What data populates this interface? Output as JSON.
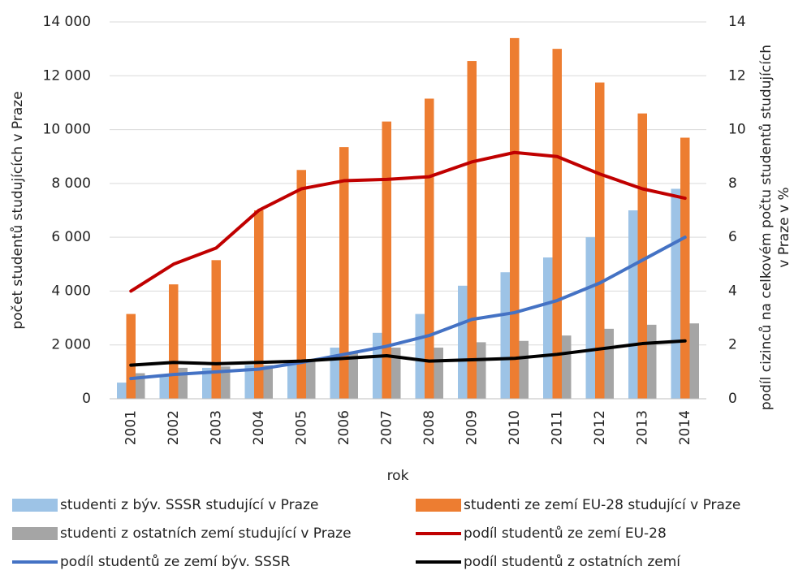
{
  "chart_data": {
    "type": "bar_line",
    "x_label": "rok",
    "y_label": "počet studentů studujících v Praze",
    "y2_label": [
      "podíl cizinců na celkovém počtu studentů studujících",
      "v Praze v %"
    ],
    "categories": [
      "2001",
      "2002",
      "2003",
      "2004",
      "2005",
      "2006",
      "2007",
      "2008",
      "2009",
      "2010",
      "2011",
      "2012",
      "2013",
      "2014"
    ],
    "series": [
      {
        "name": "studenti z býv. SSSR studující v Praze",
        "kind": "bar",
        "color": "#9dc3e6",
        "values": [
          600,
          900,
          1150,
          1250,
          1400,
          1900,
          2450,
          3150,
          4200,
          4700,
          5250,
          6000,
          7000,
          7800
        ]
      },
      {
        "name": "studenti ze zemí EU-28 studující v Praze",
        "kind": "bar",
        "color": "#ed7d31",
        "values": [
          3150,
          4250,
          5150,
          7000,
          8500,
          9350,
          10300,
          11150,
          12550,
          13400,
          13000,
          11750,
          10600,
          9700
        ]
      },
      {
        "name": "studenti z ostatních zemí studující v Praze",
        "kind": "bar",
        "color": "#a5a5a5",
        "values": [
          950,
          1150,
          1200,
          1250,
          1400,
          1700,
          1900,
          1900,
          2100,
          2150,
          2350,
          2600,
          2750,
          2800
        ]
      },
      {
        "name": "podíl studentů ze zemí EU-28",
        "kind": "line",
        "axis": "y2",
        "color": "#c00000",
        "values": [
          4.0,
          5.0,
          5.6,
          7.0,
          7.8,
          8.1,
          8.15,
          8.25,
          8.8,
          9.15,
          9.0,
          8.35,
          7.8,
          7.45
        ]
      },
      {
        "name": "podíl studentů ze zemí býv. SSSR",
        "kind": "line",
        "axis": "y2",
        "color": "#4472c4",
        "values": [
          0.75,
          0.9,
          1.0,
          1.1,
          1.35,
          1.65,
          1.95,
          2.35,
          2.95,
          3.2,
          3.65,
          4.3,
          5.15,
          6.0
        ]
      },
      {
        "name": "podíl studentů z ostatních zemí",
        "kind": "line",
        "axis": "y2",
        "color": "#000000",
        "values": [
          1.25,
          1.35,
          1.3,
          1.35,
          1.4,
          1.5,
          1.6,
          1.4,
          1.45,
          1.5,
          1.65,
          1.85,
          2.05,
          2.15
        ]
      }
    ],
    "ylim": [
      0,
      14000
    ],
    "yticks": [
      0,
      {
        "value": 2000,
        "label": "2 000"
      },
      {
        "value": 4000,
        "label": "4 000"
      },
      {
        "value": 6000,
        "label": "6 000"
      },
      {
        "value": 8000,
        "label": "8 000"
      },
      {
        "value": 10000,
        "label": "10 000"
      },
      {
        "value": 12000,
        "label": "12 000"
      },
      {
        "value": 14000,
        "label": "14 000"
      }
    ],
    "y2lim": [
      0,
      14
    ],
    "y2ticks": [
      0,
      2,
      4,
      6,
      8,
      10,
      12,
      14
    ],
    "grid": true,
    "legend": "bottom"
  }
}
